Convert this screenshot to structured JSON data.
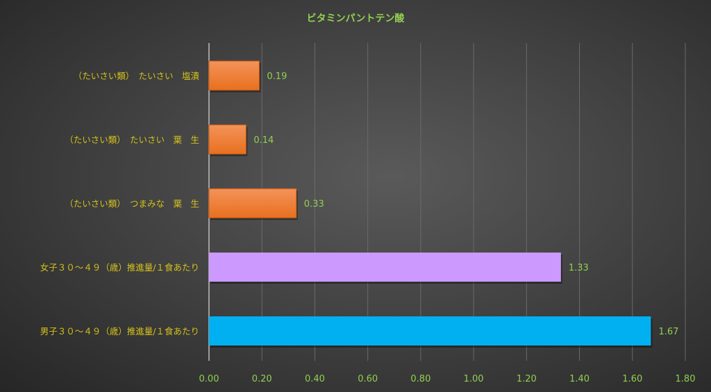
{
  "chart_data": {
    "type": "bar",
    "orientation": "horizontal",
    "title": "ビタミンパントテン酸",
    "categories": [
      "（たいさい類）　たいさい　塩漬",
      "（たいさい類）　たいさい　葉　生",
      "（たいさい類）　つまみな　葉　生",
      "女子３０～４９（歳）推進量/１食あたり",
      "男子３０～４９（歳）推進量/１食あたり"
    ],
    "values": [
      0.19,
      0.14,
      0.33,
      1.33,
      1.67
    ],
    "value_labels": [
      "0.19",
      "0.14",
      "0.33",
      "1.33",
      "1.67"
    ],
    "bar_colors": [
      "#ED7D31",
      "#ED7D31",
      "#ED7D31",
      "#CC99FF",
      "#00B0F0"
    ],
    "xlim": [
      0,
      1.8
    ],
    "xticks": [
      "0.00",
      "0.20",
      "0.40",
      "0.60",
      "0.80",
      "1.00",
      "1.20",
      "1.40",
      "1.60",
      "1.80"
    ],
    "grid": true,
    "legend": "none",
    "colors": {
      "title": "#92D050",
      "category_text": "#D4C21A",
      "value_text": "#92D050",
      "tick_text": "#92D050",
      "grid": "#6a6a6a"
    }
  }
}
